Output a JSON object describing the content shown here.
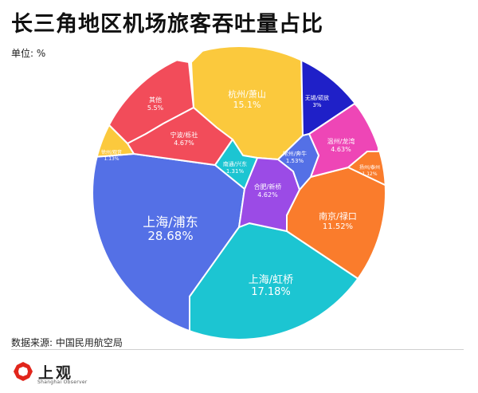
{
  "header": {
    "title": "长三角地区机场旅客吞吐量占比",
    "unit": "单位: %"
  },
  "footer": {
    "source": "数据来源: 中国民用航空局",
    "logo_text": "上观",
    "logo_sub": "Shanghai Observer"
  },
  "chart_data": {
    "type": "voronoi-treemap",
    "title": "长三角地区机场旅客吞吐量占比",
    "unit": "%",
    "cells": [
      {
        "name": "上海/浦东",
        "value": 28.68,
        "value_label": "28.68%",
        "color": "#5470E6"
      },
      {
        "name": "上海/虹桥",
        "value": 17.18,
        "value_label": "17.18%",
        "color": "#1CC5D2"
      },
      {
        "name": "杭州/萧山",
        "value": 15.1,
        "value_label": "15.1%",
        "color": "#FBC93D"
      },
      {
        "name": "南京/禄口",
        "value": 11.52,
        "value_label": "11.52%",
        "color": "#FA7C2C"
      },
      {
        "name": "其他",
        "value": 5.5,
        "value_label": "5.5%",
        "color": "#F24C5A"
      },
      {
        "name": "宁波/栎社",
        "value": 4.67,
        "value_label": "4.67%",
        "color": "#F24C5A"
      },
      {
        "name": "温州/龙湾",
        "value": 4.63,
        "value_label": "4.63%",
        "color": "#EE46B6"
      },
      {
        "name": "合肥/新桥",
        "value": 4.62,
        "value_label": "4.62%",
        "color": "#9B4BE6"
      },
      {
        "name": "无锡/硕放",
        "value": 3,
        "value_label": "3%",
        "color": "#1F20C8"
      },
      {
        "name": "常州/奔牛",
        "value": 1.53,
        "value_label": "1.53%",
        "color": "#5470E6"
      },
      {
        "name": "南通/兴东",
        "value": 1.31,
        "value_label": "1.31%",
        "color": "#1CC5D2"
      },
      {
        "name": "扬州/泰州",
        "value": 1.12,
        "value_label": "1.12%",
        "color": "#FA7C2C"
      },
      {
        "name": "徐州/观音",
        "value": 1.13,
        "value_label": "1.13%",
        "color": "#FBC93D"
      }
    ]
  }
}
